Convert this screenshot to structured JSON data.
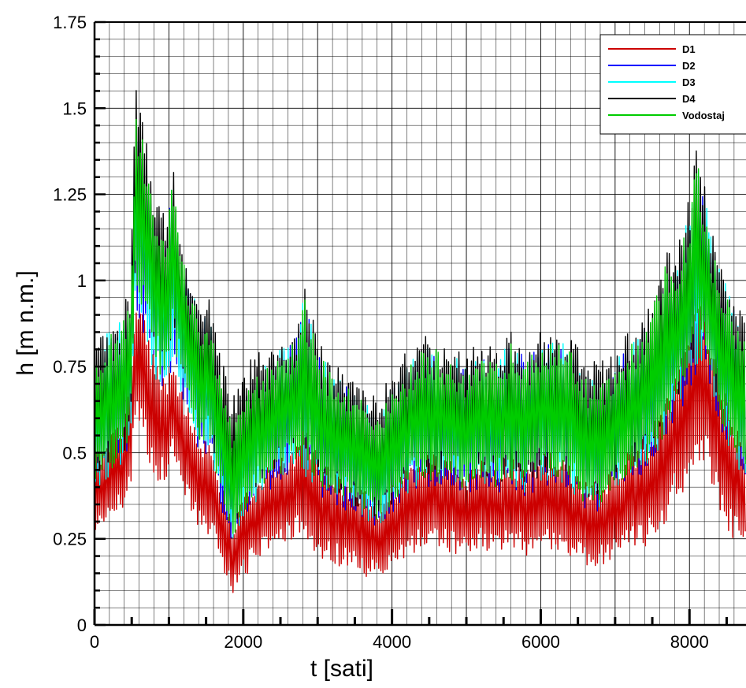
{
  "chart_data": {
    "type": "line",
    "xlabel": "t [sati]",
    "ylabel": "h [m n.m.]",
    "xlim": [
      0,
      8760
    ],
    "ylim": [
      0,
      1.75
    ],
    "x_ticks": [
      0,
      2000,
      4000,
      6000,
      8000
    ],
    "x_tick_labels": [
      "0",
      "2000",
      "4000",
      "6000",
      "8000"
    ],
    "y_ticks": [
      0,
      0.25,
      0.5,
      0.75,
      1,
      1.25,
      1.5,
      1.75
    ],
    "y_tick_labels": [
      "0",
      "0.25",
      "0.5",
      "0.75",
      "1",
      "1.25",
      "1.5",
      "1.75"
    ],
    "grid": true,
    "legend_position": "top-right",
    "envelope_x": [
      0,
      200,
      400,
      480,
      550,
      650,
      800,
      950,
      1050,
      1200,
      1400,
      1550,
      1700,
      1850,
      1950,
      2100,
      2300,
      2500,
      2700,
      2800,
      3000,
      3200,
      3400,
      3600,
      3800,
      4000,
      4200,
      4400,
      4600,
      4800,
      5000,
      5200,
      5400,
      5600,
      5800,
      6000,
      6200,
      6400,
      6600,
      6800,
      7000,
      7200,
      7400,
      7600,
      7700,
      7800,
      8000,
      8100,
      8200,
      8300,
      8450,
      8600,
      8760
    ],
    "series": [
      {
        "name": "D1",
        "color": "#cc0000",
        "low": [
          0.26,
          0.3,
          0.33,
          0.36,
          0.6,
          0.55,
          0.42,
          0.4,
          0.5,
          0.38,
          0.28,
          0.26,
          0.18,
          0.09,
          0.12,
          0.16,
          0.2,
          0.22,
          0.25,
          0.24,
          0.2,
          0.18,
          0.16,
          0.14,
          0.13,
          0.16,
          0.2,
          0.22,
          0.22,
          0.21,
          0.2,
          0.22,
          0.21,
          0.22,
          0.2,
          0.22,
          0.22,
          0.2,
          0.17,
          0.17,
          0.2,
          0.22,
          0.22,
          0.26,
          0.3,
          0.36,
          0.4,
          0.45,
          0.48,
          0.4,
          0.3,
          0.24,
          0.22
        ],
        "high": [
          0.5,
          0.55,
          0.62,
          0.7,
          0.97,
          0.92,
          0.8,
          0.72,
          0.78,
          0.66,
          0.56,
          0.55,
          0.42,
          0.3,
          0.36,
          0.42,
          0.46,
          0.5,
          0.52,
          0.58,
          0.5,
          0.44,
          0.42,
          0.4,
          0.36,
          0.42,
          0.46,
          0.5,
          0.5,
          0.48,
          0.45,
          0.48,
          0.46,
          0.5,
          0.46,
          0.5,
          0.5,
          0.46,
          0.42,
          0.42,
          0.46,
          0.52,
          0.55,
          0.62,
          0.68,
          0.72,
          0.85,
          0.95,
          0.9,
          0.8,
          0.7,
          0.6,
          0.5
        ]
      },
      {
        "name": "D2",
        "color": "#0000ff",
        "low": [
          0.38,
          0.42,
          0.46,
          0.5,
          0.9,
          0.85,
          0.7,
          0.66,
          0.75,
          0.62,
          0.5,
          0.48,
          0.34,
          0.22,
          0.28,
          0.33,
          0.38,
          0.41,
          0.44,
          0.43,
          0.38,
          0.35,
          0.33,
          0.3,
          0.27,
          0.32,
          0.37,
          0.4,
          0.4,
          0.39,
          0.37,
          0.4,
          0.38,
          0.4,
          0.37,
          0.4,
          0.41,
          0.38,
          0.33,
          0.33,
          0.38,
          0.42,
          0.44,
          0.5,
          0.55,
          0.6,
          0.66,
          0.72,
          0.78,
          0.66,
          0.55,
          0.46,
          0.4
        ],
        "high": [
          0.78,
          0.85,
          0.9,
          0.95,
          1.5,
          1.4,
          1.2,
          1.12,
          1.3,
          1.05,
          0.9,
          0.9,
          0.68,
          0.55,
          0.62,
          0.7,
          0.76,
          0.8,
          0.82,
          0.95,
          0.8,
          0.72,
          0.7,
          0.66,
          0.6,
          0.68,
          0.74,
          0.8,
          0.8,
          0.78,
          0.74,
          0.78,
          0.76,
          0.82,
          0.78,
          0.82,
          0.82,
          0.8,
          0.72,
          0.7,
          0.76,
          0.82,
          0.86,
          0.98,
          1.05,
          1.0,
          1.2,
          1.35,
          1.25,
          1.1,
          1.0,
          0.92,
          0.82
        ]
      },
      {
        "name": "D3",
        "color": "#00ffff",
        "low": [
          0.39,
          0.43,
          0.47,
          0.51,
          0.91,
          0.86,
          0.71,
          0.67,
          0.76,
          0.63,
          0.51,
          0.49,
          0.35,
          0.23,
          0.29,
          0.34,
          0.39,
          0.42,
          0.45,
          0.44,
          0.39,
          0.36,
          0.34,
          0.31,
          0.28,
          0.33,
          0.38,
          0.41,
          0.41,
          0.4,
          0.38,
          0.41,
          0.39,
          0.41,
          0.38,
          0.41,
          0.42,
          0.39,
          0.34,
          0.34,
          0.39,
          0.43,
          0.45,
          0.51,
          0.56,
          0.61,
          0.67,
          0.73,
          0.79,
          0.67,
          0.56,
          0.47,
          0.41
        ],
        "high": [
          0.79,
          0.86,
          0.91,
          0.96,
          1.51,
          1.41,
          1.21,
          1.13,
          1.31,
          1.06,
          0.91,
          0.91,
          0.69,
          0.56,
          0.63,
          0.71,
          0.77,
          0.81,
          0.83,
          0.96,
          0.81,
          0.73,
          0.71,
          0.67,
          0.61,
          0.69,
          0.75,
          0.81,
          0.81,
          0.79,
          0.75,
          0.79,
          0.77,
          0.83,
          0.79,
          0.83,
          0.83,
          0.81,
          0.73,
          0.71,
          0.77,
          0.83,
          0.87,
          0.99,
          1.06,
          1.01,
          1.21,
          1.36,
          1.26,
          1.11,
          1.01,
          0.93,
          0.83
        ]
      },
      {
        "name": "D4",
        "color": "#000000",
        "low": [
          0.4,
          0.45,
          0.5,
          0.55,
          1.0,
          0.95,
          0.8,
          0.75,
          0.85,
          0.72,
          0.58,
          0.55,
          0.4,
          0.28,
          0.32,
          0.38,
          0.42,
          0.45,
          0.48,
          0.47,
          0.42,
          0.38,
          0.36,
          0.32,
          0.3,
          0.35,
          0.4,
          0.43,
          0.43,
          0.42,
          0.4,
          0.43,
          0.41,
          0.43,
          0.4,
          0.43,
          0.44,
          0.42,
          0.37,
          0.37,
          0.42,
          0.46,
          0.48,
          0.55,
          0.6,
          0.65,
          0.72,
          0.8,
          0.85,
          0.72,
          0.6,
          0.5,
          0.45
        ],
        "high": [
          0.82,
          0.88,
          0.95,
          1.0,
          1.56,
          1.5,
          1.28,
          1.2,
          1.35,
          1.12,
          0.96,
          0.97,
          0.78,
          0.66,
          0.7,
          0.78,
          0.8,
          0.85,
          0.86,
          1.0,
          0.85,
          0.77,
          0.74,
          0.7,
          0.66,
          0.74,
          0.8,
          0.84,
          0.84,
          0.82,
          0.79,
          0.83,
          0.8,
          0.86,
          0.82,
          0.86,
          0.87,
          0.85,
          0.78,
          0.76,
          0.82,
          0.86,
          0.9,
          1.04,
          1.1,
          1.05,
          1.25,
          1.39,
          1.3,
          1.15,
          1.05,
          0.97,
          0.86
        ]
      },
      {
        "name": "Vodostaj",
        "color": "#00cc00",
        "low": [
          0.4,
          0.44,
          0.48,
          0.52,
          0.95,
          0.9,
          0.75,
          0.7,
          0.8,
          0.67,
          0.54,
          0.52,
          0.38,
          0.24,
          0.3,
          0.36,
          0.4,
          0.43,
          0.46,
          0.45,
          0.4,
          0.37,
          0.35,
          0.32,
          0.29,
          0.34,
          0.39,
          0.42,
          0.42,
          0.41,
          0.39,
          0.42,
          0.4,
          0.42,
          0.39,
          0.42,
          0.43,
          0.4,
          0.35,
          0.35,
          0.4,
          0.44,
          0.46,
          0.52,
          0.58,
          0.63,
          0.7,
          0.76,
          0.8,
          0.68,
          0.57,
          0.48,
          0.42
        ],
        "high": [
          0.78,
          0.85,
          0.9,
          0.95,
          1.52,
          1.44,
          1.2,
          1.12,
          1.3,
          1.05,
          0.9,
          0.9,
          0.7,
          0.58,
          0.63,
          0.7,
          0.76,
          0.8,
          0.82,
          0.98,
          0.8,
          0.72,
          0.7,
          0.66,
          0.6,
          0.68,
          0.74,
          0.8,
          0.8,
          0.78,
          0.74,
          0.78,
          0.76,
          0.82,
          0.78,
          0.82,
          0.82,
          0.8,
          0.72,
          0.7,
          0.76,
          0.82,
          0.86,
          0.98,
          1.08,
          1.0,
          1.22,
          1.36,
          1.26,
          1.1,
          1.0,
          0.92,
          0.82
        ]
      }
    ]
  }
}
